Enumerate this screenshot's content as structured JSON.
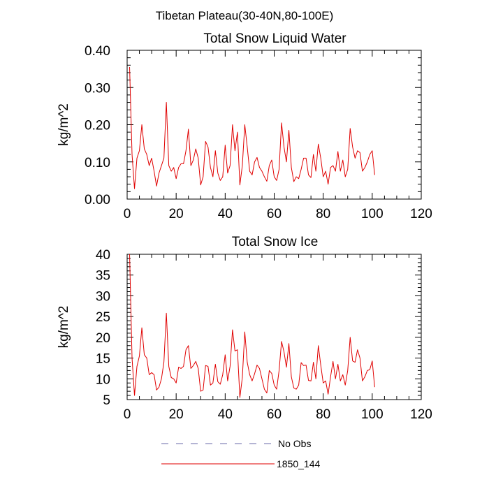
{
  "figure": {
    "title": "Tibetan Plateau(30-40N,80-100E)"
  },
  "legend": {
    "placement": "bottom-center",
    "entries": [
      {
        "label": "No Obs",
        "color": "#6a6aa8",
        "style": "dashed"
      },
      {
        "label": "1850_144",
        "color": "#e00000",
        "style": "solid"
      }
    ]
  },
  "chart_data": [
    {
      "type": "line",
      "title": "Total Snow Liquid Water",
      "ylabel": "kg/m^2",
      "xlabel": "",
      "xlim": [
        0,
        120
      ],
      "ylim": [
        0,
        0.4
      ],
      "xticks": [
        "0",
        "20",
        "40",
        "60",
        "80",
        "100",
        "120"
      ],
      "yticks": [
        "0.00",
        "0.10",
        "0.20",
        "0.30",
        "0.40"
      ],
      "grid": false,
      "series": [
        {
          "name": "1850_144",
          "color": "#e00000",
          "x": [
            1,
            2,
            3,
            4,
            5,
            6,
            7,
            8,
            9,
            10,
            11,
            12,
            13,
            14,
            15,
            16,
            17,
            18,
            19,
            20,
            21,
            22,
            23,
            24,
            25,
            26,
            27,
            28,
            29,
            30,
            31,
            32,
            33,
            34,
            35,
            36,
            37,
            38,
            39,
            40,
            41,
            42,
            43,
            44,
            45,
            46,
            47,
            48,
            49,
            50,
            51,
            52,
            53,
            54,
            55,
            56,
            57,
            58,
            59,
            60,
            61,
            62,
            63,
            64,
            65,
            66,
            67,
            68,
            69,
            70,
            71,
            72,
            73,
            74,
            75,
            76,
            77,
            78,
            79,
            80,
            81,
            82,
            83,
            84,
            85,
            86,
            87,
            88,
            89,
            90,
            91,
            92,
            93,
            94,
            95,
            96,
            97,
            98,
            99,
            100,
            101
          ],
          "y": [
            0.355,
            0.12,
            0.028,
            0.11,
            0.13,
            0.2,
            0.135,
            0.12,
            0.09,
            0.11,
            0.075,
            0.035,
            0.07,
            0.09,
            0.11,
            0.26,
            0.09,
            0.075,
            0.085,
            0.055,
            0.085,
            0.095,
            0.095,
            0.13,
            0.188,
            0.09,
            0.105,
            0.135,
            0.11,
            0.038,
            0.06,
            0.155,
            0.14,
            0.085,
            0.06,
            0.13,
            0.07,
            0.05,
            0.06,
            0.145,
            0.07,
            0.09,
            0.2,
            0.13,
            0.18,
            0.038,
            0.09,
            0.2,
            0.14,
            0.075,
            0.065,
            0.1,
            0.112,
            0.085,
            0.075,
            0.06,
            0.048,
            0.09,
            0.105,
            0.06,
            0.05,
            0.08,
            0.205,
            0.14,
            0.1,
            0.185,
            0.085,
            0.047,
            0.06,
            0.055,
            0.08,
            0.11,
            0.11,
            0.065,
            0.058,
            0.12,
            0.075,
            0.148,
            0.11,
            0.06,
            0.075,
            0.04,
            0.085,
            0.09,
            0.075,
            0.128,
            0.075,
            0.105,
            0.06,
            0.08,
            0.19,
            0.14,
            0.11,
            0.13,
            0.125,
            0.075,
            0.085,
            0.1,
            0.12,
            0.13,
            0.065
          ]
        }
      ]
    },
    {
      "type": "line",
      "title": "Total Snow Ice",
      "ylabel": "kg/m^2",
      "xlabel": "",
      "xlim": [
        0,
        120
      ],
      "ylim": [
        5,
        40
      ],
      "xticks": [
        "0",
        "20",
        "40",
        "60",
        "80",
        "100",
        "120"
      ],
      "yticks": [
        "5",
        "10",
        "15",
        "20",
        "25",
        "30",
        "35",
        "40"
      ],
      "grid": false,
      "series": [
        {
          "name": "1850_144",
          "color": "#e00000",
          "x": [
            1,
            2,
            3,
            4,
            5,
            6,
            7,
            8,
            9,
            10,
            11,
            12,
            13,
            14,
            15,
            16,
            17,
            18,
            19,
            20,
            21,
            22,
            23,
            24,
            25,
            26,
            27,
            28,
            29,
            30,
            31,
            32,
            33,
            34,
            35,
            36,
            37,
            38,
            39,
            40,
            41,
            42,
            43,
            44,
            45,
            46,
            47,
            48,
            49,
            50,
            51,
            52,
            53,
            54,
            55,
            56,
            57,
            58,
            59,
            60,
            61,
            62,
            63,
            64,
            65,
            66,
            67,
            68,
            69,
            70,
            71,
            72,
            73,
            74,
            75,
            76,
            77,
            78,
            79,
            80,
            81,
            82,
            83,
            84,
            85,
            86,
            87,
            88,
            89,
            90,
            91,
            92,
            93,
            94,
            95,
            96,
            97,
            98,
            99,
            100,
            101
          ],
          "y": [
            40,
            15,
            6,
            13,
            15.5,
            22.3,
            15.8,
            15,
            11,
            11.5,
            11,
            7.3,
            8,
            10,
            14,
            25.8,
            13,
            10.3,
            10,
            9,
            12.8,
            12.5,
            13,
            17,
            18,
            12.5,
            13.2,
            14.2,
            12.5,
            7,
            7.3,
            13.2,
            13,
            8.5,
            9,
            13.5,
            9.3,
            8.7,
            11,
            15.8,
            9.5,
            13,
            21.8,
            16.7,
            17,
            5.5,
            10.3,
            21.3,
            14,
            11,
            9.5,
            11.2,
            13.3,
            12.5,
            10,
            7.5,
            6.6,
            12,
            11.3,
            8.5,
            7.5,
            12,
            19,
            16.5,
            12.8,
            18.5,
            10.5,
            7.8,
            7.5,
            8.5,
            13.9,
            13.2,
            13.3,
            9.6,
            9.5,
            14,
            10,
            18,
            13.3,
            9,
            9.5,
            6.3,
            10.5,
            14.2,
            10,
            13.5,
            9.5,
            11,
            8.5,
            12,
            20,
            14.3,
            14,
            17,
            15,
            9.5,
            10.5,
            12,
            12.2,
            14.3,
            8
          ]
        }
      ]
    }
  ]
}
